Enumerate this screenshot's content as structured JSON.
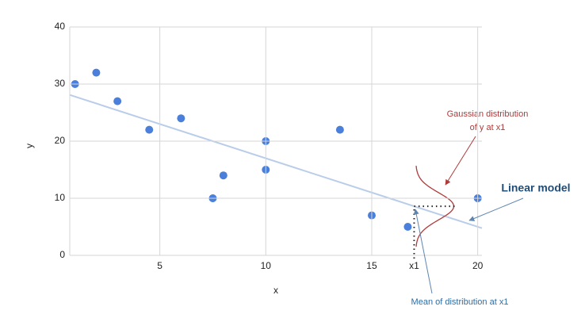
{
  "chart_data": {
    "type": "scatter",
    "x_label": "x",
    "y_label": "y",
    "x": [
      1,
      2,
      3,
      4.5,
      6,
      7.5,
      8,
      10,
      10,
      13.5,
      15,
      16.7,
      20
    ],
    "values": [
      30,
      32,
      27,
      22,
      24,
      10,
      14,
      20,
      15,
      22,
      7,
      5,
      10
    ],
    "color": "#4a80dc",
    "fit": {
      "name": "Linear model",
      "color": "#b9cdea",
      "x": [
        0.75,
        20.2
      ],
      "y": [
        28.1,
        4.76
      ]
    },
    "marker": {
      "value": 17,
      "label": "x1"
    },
    "gaussian_label": [
      "Gaussian distribution",
      "of y at x1"
    ],
    "mean_label": "Mean of distribution at x1",
    "xlim": [
      0.75,
      20.2
    ],
    "ylim": [
      0,
      40
    ],
    "xticks": [
      5,
      10,
      15,
      20
    ],
    "yticks": [
      0,
      10,
      20,
      30,
      40
    ],
    "grid": true
  }
}
